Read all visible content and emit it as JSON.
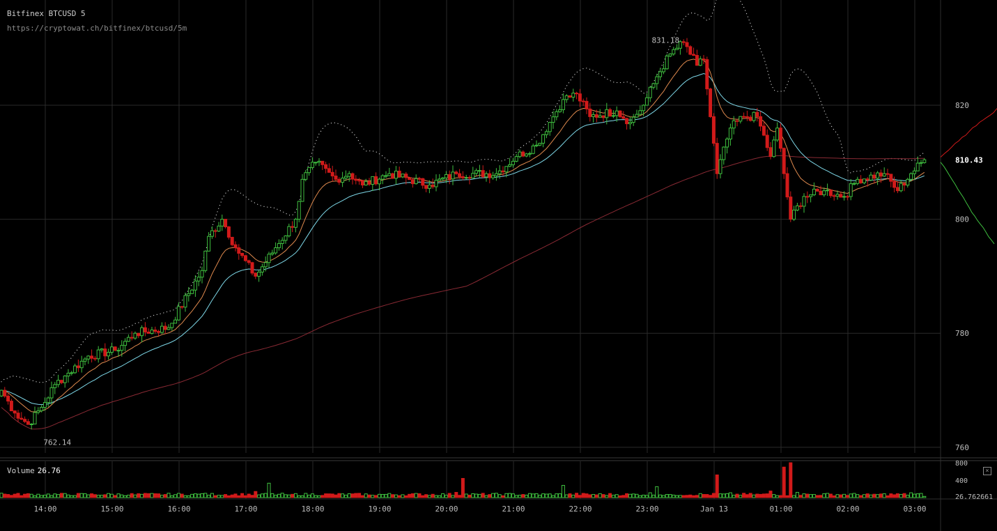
{
  "header": {
    "title": "Bitfinex BTCUSD 5",
    "url": "https://cryptowat.ch/bitfinex/btcusd/5m"
  },
  "volume_panel": {
    "label": "Volume",
    "value": "26.76",
    "axis_ticks": [
      "800",
      "400"
    ],
    "last_value_label": "26.762661",
    "close_symbol": "×"
  },
  "colors": {
    "background": "#000000",
    "grid": "#2a2a2a",
    "up": "#3fbf3f",
    "down": "#d11a1a",
    "ema_orange": "#e08a4e",
    "ema_cyan": "#7ed8e8",
    "sma_long": "#8a2a34",
    "bb_dots": "#d8d8d8",
    "depth_ask": "#d11a1a",
    "depth_bid": "#3fbf3f"
  },
  "chart_data": {
    "type": "candlestick",
    "title": "Bitfinex BTCUSD 5",
    "x_tick_labels": [
      "14:00",
      "15:00",
      "16:00",
      "17:00",
      "18:00",
      "19:00",
      "20:00",
      "21:00",
      "22:00",
      "23:00",
      "Jan 13",
      "01:00",
      "02:00",
      "03:00"
    ],
    "y_tick_labels": [
      "820",
      "810.43",
      "800",
      "780",
      "760"
    ],
    "y_ticks": [
      820,
      800,
      780,
      760
    ],
    "ylim": [
      759,
      838
    ],
    "last_price": 810.43,
    "last_price_label": "810.43",
    "high_annotation": {
      "value": 831.18,
      "label": "831.18"
    },
    "low_annotation": {
      "value": 762.14,
      "label": "762.14"
    },
    "candle_interval": "5m",
    "keypoints": [
      [
        0,
        770
      ],
      [
        4,
        766
      ],
      [
        8,
        764
      ],
      [
        12,
        767
      ],
      [
        16,
        771
      ],
      [
        20,
        773
      ],
      [
        26,
        776
      ],
      [
        34,
        777
      ],
      [
        40,
        780
      ],
      [
        50,
        781
      ],
      [
        60,
        791
      ],
      [
        62,
        797
      ],
      [
        66,
        800
      ],
      [
        70,
        795
      ],
      [
        76,
        790
      ],
      [
        82,
        795
      ],
      [
        88,
        800
      ],
      [
        90,
        807
      ],
      [
        94,
        810
      ],
      [
        100,
        807
      ],
      [
        104,
        808
      ],
      [
        108,
        806
      ],
      [
        116,
        808
      ],
      [
        128,
        806
      ],
      [
        136,
        808
      ],
      [
        148,
        808
      ],
      [
        154,
        811
      ],
      [
        160,
        813
      ],
      [
        164,
        817
      ],
      [
        168,
        821
      ],
      [
        172,
        822
      ],
      [
        176,
        818
      ],
      [
        184,
        819
      ],
      [
        188,
        817
      ],
      [
        192,
        820
      ],
      [
        196,
        825
      ],
      [
        200,
        829
      ],
      [
        204,
        831
      ],
      [
        208,
        827
      ],
      [
        210,
        828
      ],
      [
        214,
        808
      ],
      [
        218,
        816
      ],
      [
        222,
        818
      ],
      [
        226,
        818
      ],
      [
        230,
        811
      ],
      [
        232,
        816
      ],
      [
        236,
        800
      ],
      [
        240,
        804
      ],
      [
        246,
        805
      ],
      [
        252,
        804
      ],
      [
        256,
        807
      ],
      [
        264,
        808
      ],
      [
        268,
        805
      ],
      [
        272,
        808
      ],
      [
        276,
        810.43
      ]
    ],
    "volume_keypoints": [
      [
        0,
        100
      ],
      [
        20,
        60
      ],
      [
        40,
        60
      ],
      [
        60,
        90
      ],
      [
        76,
        140
      ],
      [
        80,
        330
      ],
      [
        86,
        60
      ],
      [
        110,
        60
      ],
      [
        136,
        120
      ],
      [
        138,
        440
      ],
      [
        142,
        80
      ],
      [
        160,
        90
      ],
      [
        168,
        280
      ],
      [
        172,
        100
      ],
      [
        194,
        110
      ],
      [
        196,
        250
      ],
      [
        200,
        70
      ],
      [
        214,
        520
      ],
      [
        218,
        110
      ],
      [
        226,
        80
      ],
      [
        230,
        150
      ],
      [
        234,
        700
      ],
      [
        236,
        800
      ],
      [
        238,
        120
      ],
      [
        260,
        60
      ],
      [
        272,
        110
      ],
      [
        276,
        27
      ]
    ]
  }
}
